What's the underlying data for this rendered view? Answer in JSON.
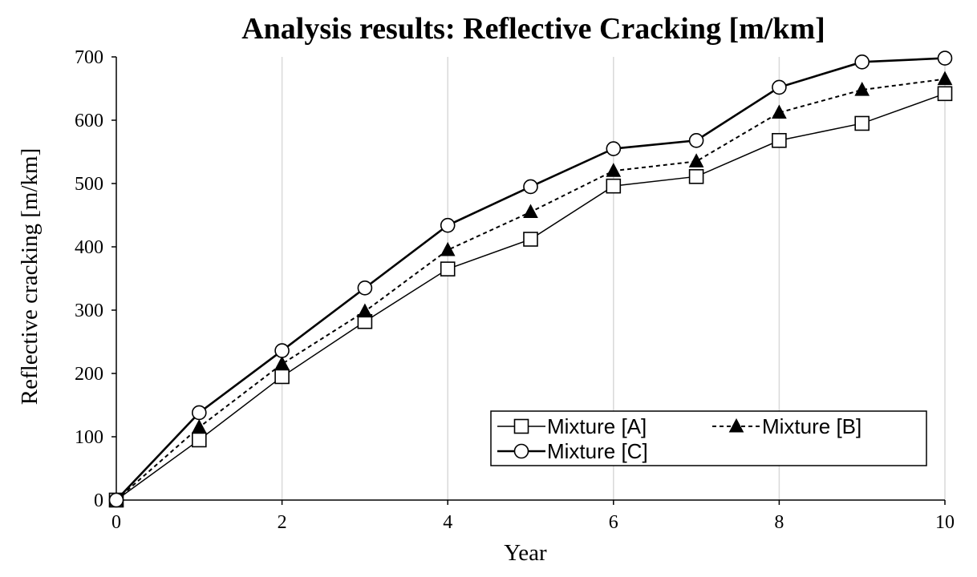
{
  "chart_data": {
    "type": "line",
    "title": "Analysis results: Reflective Cracking [m/km]",
    "xlabel": "Year",
    "ylabel": "Reflective cracking [m/km]",
    "xlim": [
      0,
      10
    ],
    "ylim": [
      0,
      700
    ],
    "x_ticks": [
      0,
      2,
      4,
      6,
      8,
      10
    ],
    "y_ticks": [
      0,
      100,
      200,
      300,
      400,
      500,
      600,
      700
    ],
    "grid": "vertical",
    "legend_position": "bottom-right",
    "x": [
      0,
      1,
      2,
      3,
      4,
      5,
      6,
      7,
      8,
      9,
      10
    ],
    "series": [
      {
        "name": "Mixture [A]",
        "marker": "square",
        "line": "solid-thin",
        "color": "#000000",
        "values": [
          0,
          95,
          195,
          282,
          365,
          412,
          496,
          511,
          568,
          595,
          642
        ]
      },
      {
        "name": "Mixture [B]",
        "marker": "triangle",
        "line": "dashed",
        "color": "#000000",
        "values": [
          0,
          115,
          215,
          298,
          395,
          455,
          520,
          535,
          612,
          648,
          665
        ]
      },
      {
        "name": "Mixture [C]",
        "marker": "circle",
        "line": "solid-thick",
        "color": "#000000",
        "values": [
          0,
          138,
          236,
          335,
          434,
          495,
          555,
          568,
          652,
          692,
          698
        ]
      }
    ]
  }
}
